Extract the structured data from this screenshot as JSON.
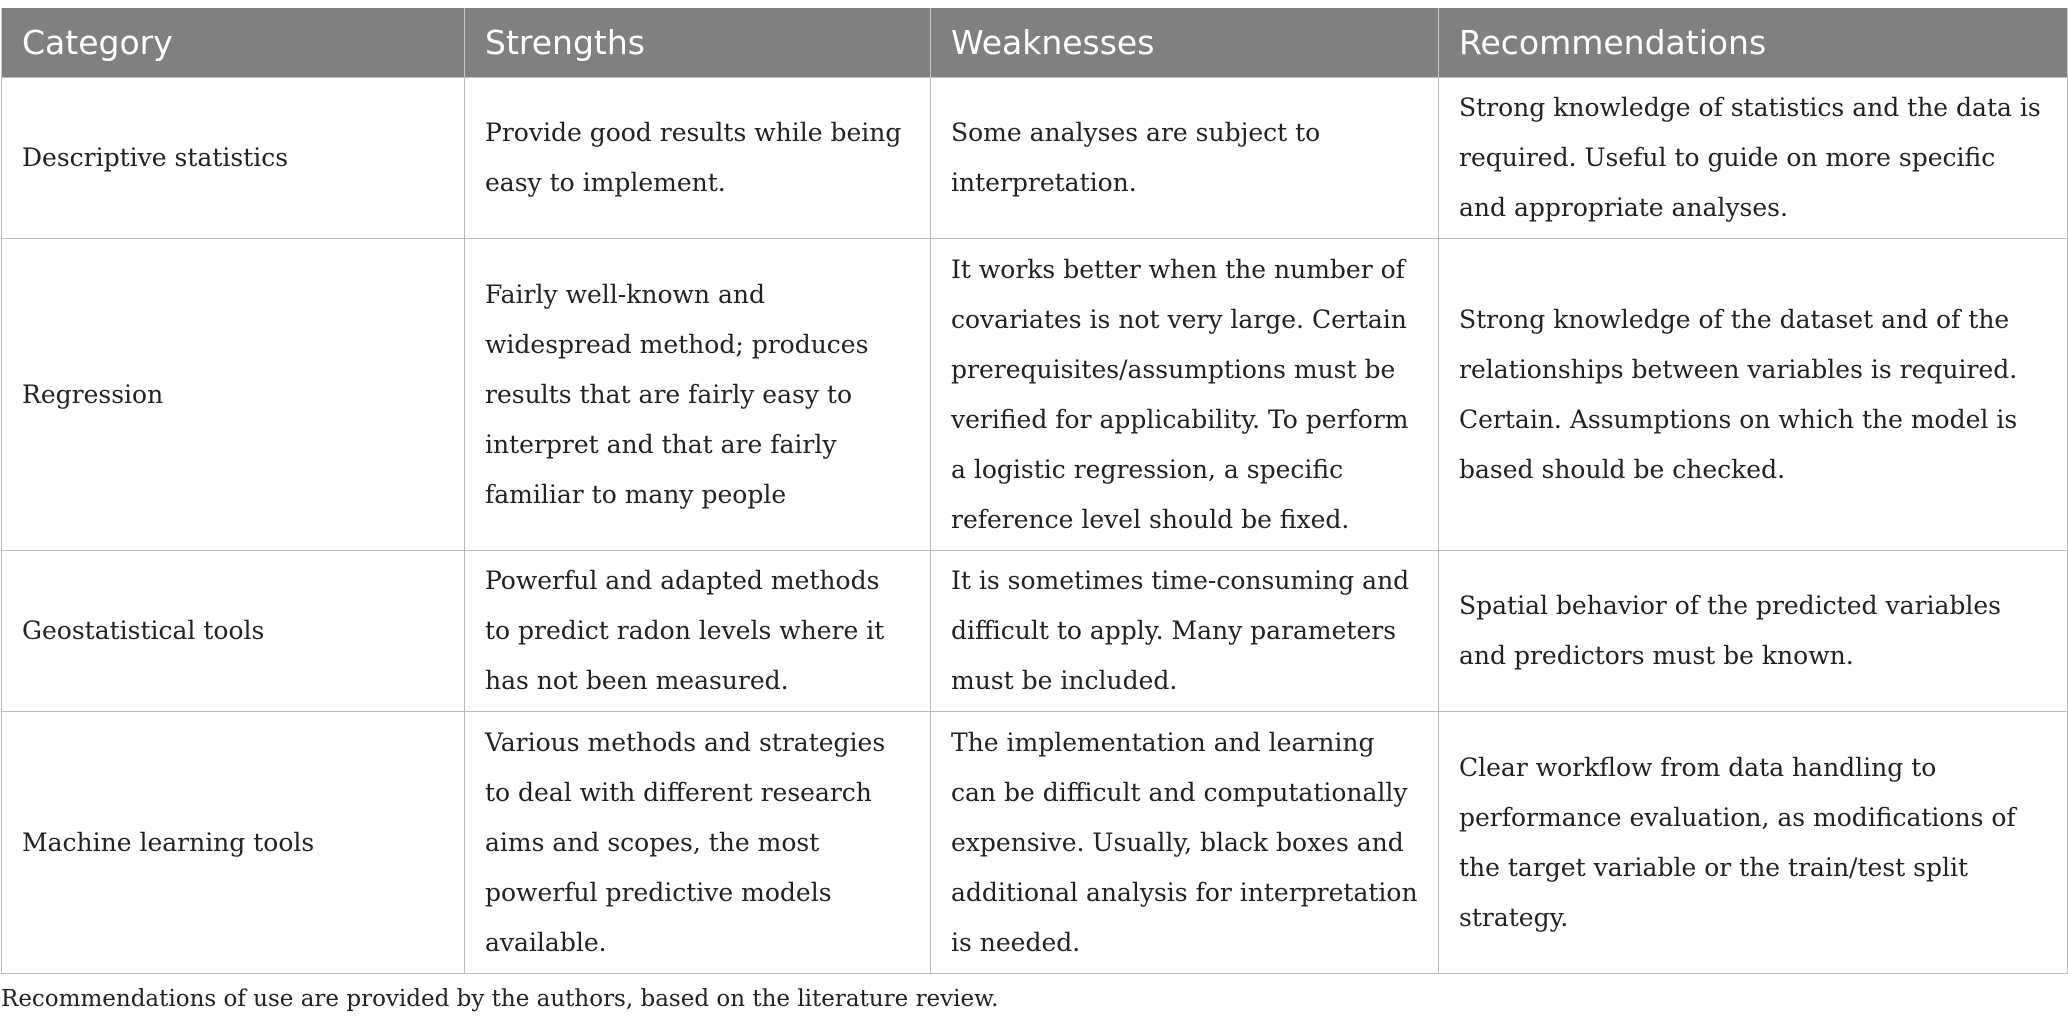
{
  "table": {
    "headers": [
      "Category",
      "Strengths",
      "Weaknesses",
      "Recommendations"
    ],
    "rows": [
      {
        "category": "Descriptive statistics",
        "strengths": "Provide good results while being easy to implement.",
        "weaknesses": "Some analyses are subject to interpretation.",
        "recommendations": "Strong knowledge of statistics and the data is required. Useful to guide on more specific and appropriate analyses."
      },
      {
        "category": "Regression",
        "strengths": "Fairly well-known and widespread method; produces results that are fairly easy to interpret and that are fairly familiar to many people",
        "weaknesses": "It works better when the number of covariates is not very large. Certain prerequisites/assumptions must be verified for applicability. To perform a logistic regression, a specific reference level should be fixed.",
        "recommendations": "Strong knowledge of the dataset and of the relationships between variables is required. Certain. Assumptions on which the model is based should be checked."
      },
      {
        "category": "Geostatistical tools",
        "strengths": "Powerful and adapted methods to predict radon levels where it has not been measured.",
        "weaknesses": "It is sometimes time-consuming and difficult to apply. Many parameters must be included.",
        "recommendations": "Spatial behavior of the predicted variables and predictors must be known."
      },
      {
        "category": "Machine learning tools",
        "strengths": "Various methods and strategies to deal with different research aims and scopes, the most powerful predictive models available.",
        "weaknesses": "The implementation and learning can be difficult and computationally expensive. Usually, black boxes and additional analysis for interpretation is needed.",
        "recommendations": "Clear workflow from data handling to performance evaluation, as modifications of the target variable or the train/test split strategy."
      }
    ]
  },
  "footnote": "Recommendations of use are provided by the authors, based on the literature review."
}
